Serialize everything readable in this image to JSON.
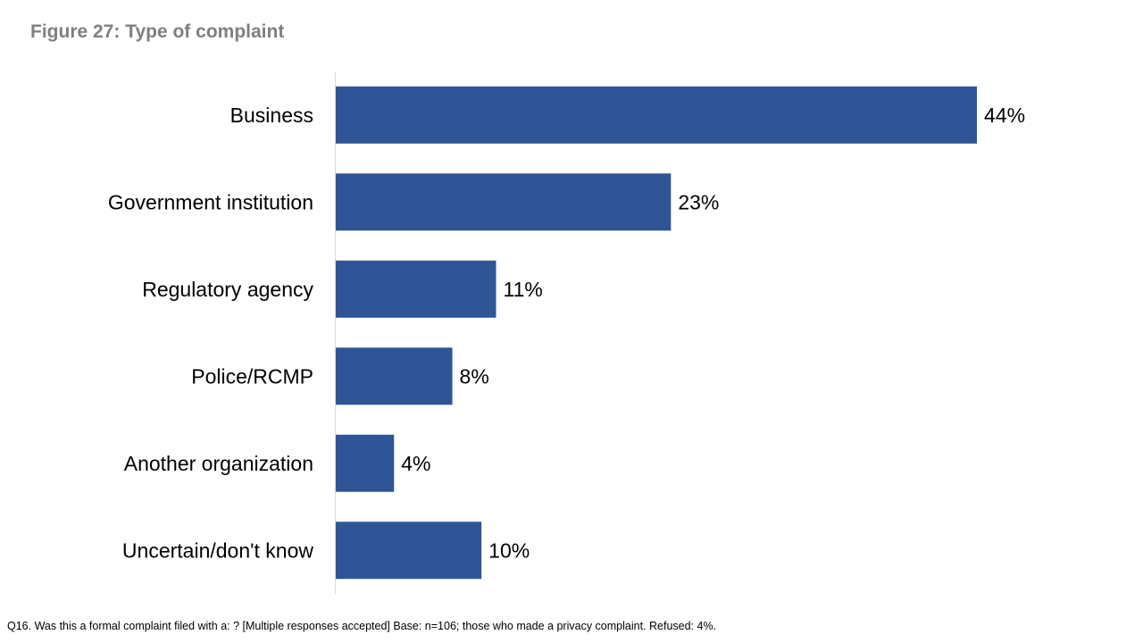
{
  "title": "Figure 27: Type of complaint",
  "footnote": "Q16. Was this a formal complaint filed with a: ? [Multiple responses accepted] Base: n=106; those who made a privacy complaint. Refused: 4%.",
  "colors": {
    "bar": "#2f5597",
    "axis": "#d9d9d9",
    "title": "#7f7f7f"
  },
  "chart_data": {
    "type": "bar",
    "orientation": "horizontal",
    "title": "Figure 27: Type of complaint",
    "xlabel": "",
    "ylabel": "",
    "xlim": [
      0,
      44
    ],
    "grid": false,
    "legend": "none",
    "categories": [
      "Business",
      "Government institution",
      "Regulatory agency",
      "Police/RCMP",
      "Another organization",
      "Uncertain/don't know"
    ],
    "values": [
      44,
      23,
      11,
      8,
      4,
      10
    ],
    "data_labels": [
      "44%",
      "23%",
      "11%",
      "8%",
      "4%",
      "10%"
    ]
  }
}
